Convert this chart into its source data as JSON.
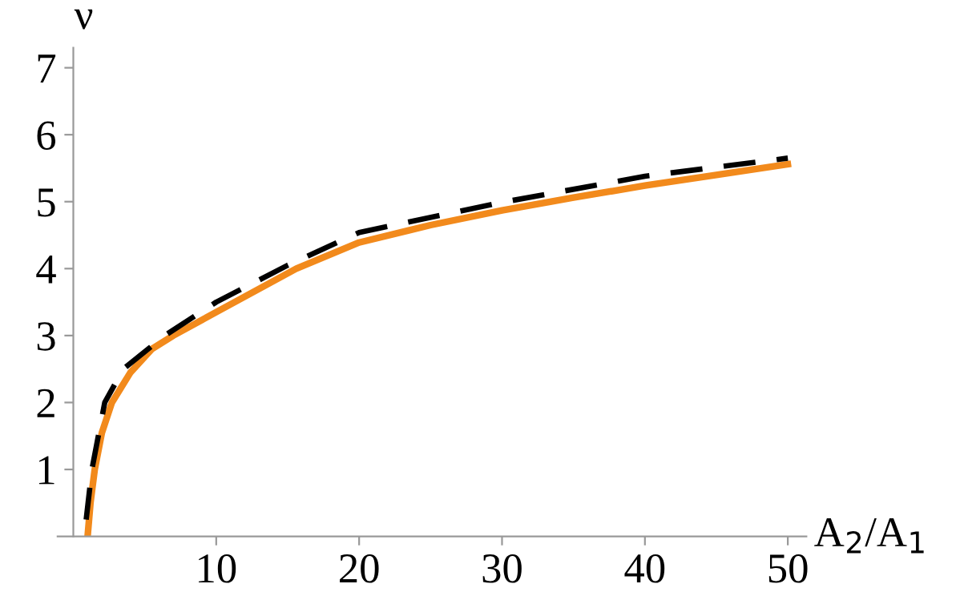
{
  "chart_data": {
    "type": "line",
    "xlabel": "A$_{2}$/A$_{1}$",
    "ylabel": "ν",
    "xlim": [
      -1.1,
      51.3
    ],
    "ylim": [
      0,
      7.3
    ],
    "xticks": [
      10,
      20,
      30,
      40,
      50
    ],
    "yticks": [
      1,
      2,
      3,
      4,
      5,
      6,
      7
    ],
    "grid": false,
    "legend": false,
    "series": [
      {
        "color": "#f28a1c",
        "line_style": "solid",
        "x": [
          1,
          1.2,
          1.5,
          2,
          2.7,
          4,
          5.5,
          7,
          10,
          15.6,
          20,
          25,
          30,
          35,
          40,
          45,
          50
        ],
        "values": [
          0,
          0.5,
          1,
          1.55,
          2,
          2.45,
          2.8,
          3,
          3.35,
          4,
          4.39,
          4.65,
          4.87,
          5.06,
          5.24,
          5.4,
          5.56
        ]
      },
      {
        "color": "#000000",
        "line_style": "dashed",
        "x": [
          0.9,
          1.3,
          2.2,
          3.5,
          6.4,
          10,
          15,
          20,
          30,
          40,
          50
        ],
        "values": [
          0.25,
          1,
          2,
          2.5,
          3,
          3.5,
          4.05,
          4.54,
          4.99,
          5.38,
          5.65
        ]
      }
    ]
  }
}
